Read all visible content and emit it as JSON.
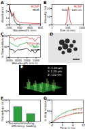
{
  "chart_data": [
    {
      "type": "line",
      "title": "A",
      "x_label": "Wavelength (nm)",
      "y_label": "Absorbance",
      "xlim": [
        200,
        800
      ],
      "xticks": [
        200,
        400,
        600,
        800
      ],
      "ylim": [
        0,
        3
      ],
      "yticks": [
        0,
        1,
        2,
        3
      ],
      "x": [
        200,
        250,
        280,
        300,
        350,
        400,
        500,
        600,
        700,
        800
      ],
      "series": [
        {
          "name": "MCNP",
          "color": "#e0211b",
          "values": [
            2.6,
            1.5,
            1.8,
            1.2,
            0.6,
            0.4,
            0.3,
            0.25,
            0.2,
            0.2
          ]
        },
        {
          "name": "MOR",
          "color": "#000000",
          "values": [
            2.8,
            1.2,
            1.6,
            0.6,
            0.1,
            0.05,
            0.02,
            0.02,
            0.02,
            0.02
          ]
        }
      ],
      "legend": "top-right"
    },
    {
      "type": "line",
      "title": "B",
      "x_label": "Size (d.nm)",
      "y_label": "Intensity (%)",
      "log": "x",
      "xlim": [
        1,
        10000
      ],
      "xticks": [
        1,
        100,
        10000
      ],
      "ylim": [
        0,
        25
      ],
      "yticks": [
        0,
        10,
        20
      ],
      "x": [
        10,
        50,
        80,
        100,
        124,
        150,
        200,
        300,
        1000
      ],
      "series": [
        {
          "name": "MCNP",
          "color": "#e0211b",
          "values": [
            0,
            0,
            5,
            15,
            22,
            15,
            6,
            0,
            0
          ]
        }
      ],
      "annotations": [
        "Size ~ 124 nm"
      ],
      "legend": "top-right"
    },
    {
      "type": "line",
      "title": "C",
      "x_label": "Wavelength (cm-1)",
      "y_label": "% Transmittance",
      "xlim": [
        4000,
        500
      ],
      "xticks": [
        4000,
        3000,
        2000,
        1000
      ],
      "ylim": [
        0,
        100
      ],
      "yticks": [
        0,
        50,
        100
      ],
      "x": [
        4000,
        3500,
        3400,
        3000,
        2900,
        2000,
        1650,
        1550,
        1400,
        1100,
        1000,
        800,
        500
      ],
      "series": [
        {
          "name": "Chitosan",
          "color": "#e0211b",
          "values": [
            95,
            90,
            80,
            92,
            88,
            95,
            85,
            88,
            90,
            75,
            80,
            92,
            90
          ]
        },
        {
          "name": "MOR",
          "color": "#1f9e35",
          "values": [
            70,
            60,
            55,
            50,
            58,
            70,
            55,
            50,
            60,
            45,
            50,
            65,
            60
          ]
        },
        {
          "name": "MCNP",
          "color": "#000000",
          "values": [
            40,
            35,
            25,
            38,
            35,
            42,
            30,
            28,
            35,
            20,
            25,
            38,
            35
          ]
        }
      ],
      "legend": "right"
    },
    {
      "type": "image",
      "title": "D"
    },
    {
      "type": "image",
      "title": "E",
      "annotations": [
        "X: 1.20 µm",
        "Y: 1.20 µm",
        "Z: 122 nm"
      ]
    },
    {
      "type": "bar",
      "title": "F",
      "y_label": "Percentage (%)",
      "categories": [
        "Encapsulation efficiency",
        "Drug loading"
      ],
      "values": [
        68,
        35
      ],
      "color": "#2e9e3e",
      "ylim": [
        0,
        100
      ],
      "yticks": [
        0,
        50,
        100
      ]
    },
    {
      "type": "line",
      "title": "G",
      "x_label": "Time in hrs",
      "y_label": "% drug release",
      "xlim": [
        0,
        12
      ],
      "xticks": [
        0,
        4,
        8,
        12
      ],
      "ylim": [
        0,
        100
      ],
      "yticks": [
        0,
        50,
        100
      ],
      "x": [
        0,
        2,
        4,
        6,
        8,
        10,
        12
      ],
      "series": [
        {
          "name": "pH 7.4",
          "color": "#e0211b",
          "values": [
            0,
            15,
            25,
            32,
            38,
            42,
            45
          ]
        },
        {
          "name": "pH 5.4",
          "color": "#1f9e35",
          "values": [
            0,
            25,
            40,
            50,
            57,
            62,
            65
          ]
        }
      ],
      "legend": "right"
    }
  ]
}
